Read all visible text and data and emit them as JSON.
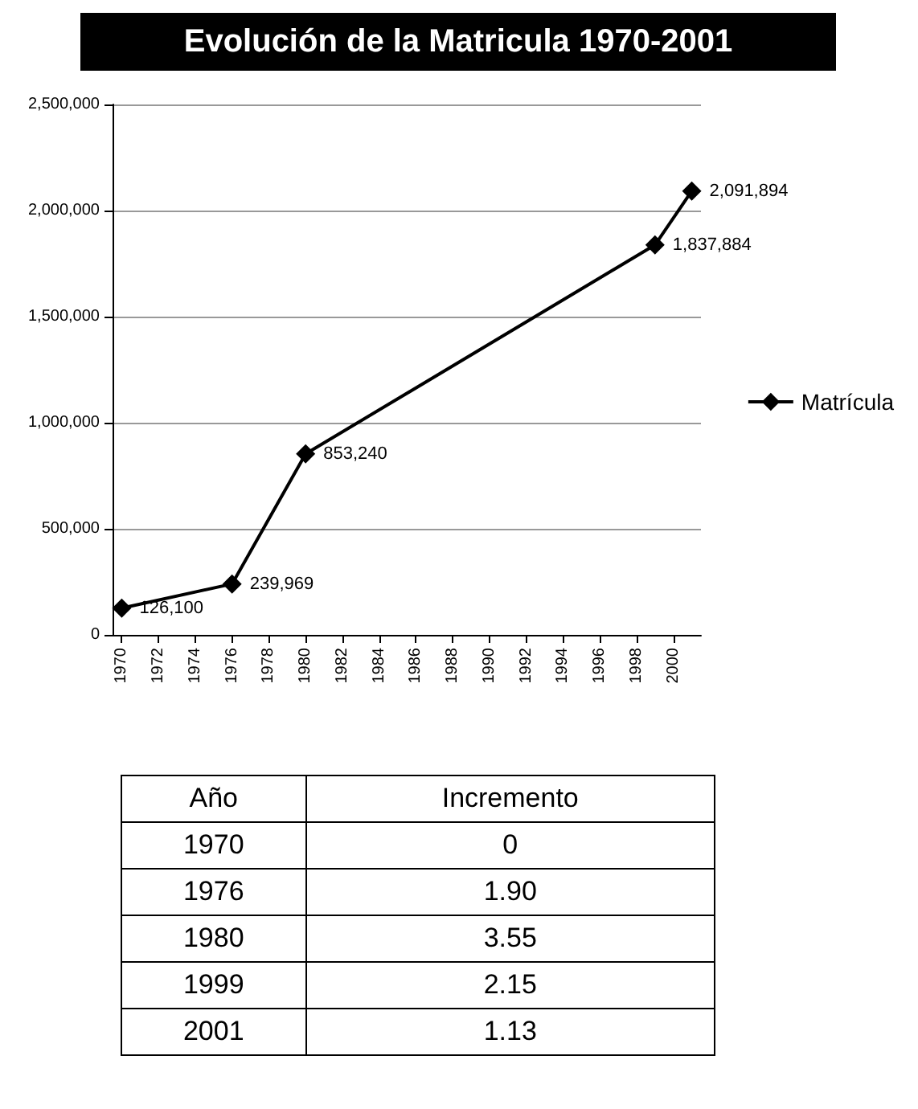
{
  "chart_data": [
    {
      "type": "line",
      "title": "Evolución de la Matricula 1970-2001",
      "x": [
        1970,
        1976,
        1980,
        1999,
        2001
      ],
      "series": [
        {
          "name": "Matrícula",
          "color": "#000000",
          "values": [
            126100,
            239969,
            853240,
            1837884,
            2091894
          ],
          "value_labels": [
            "126,100",
            "239,969",
            "853,240",
            "1,837,884",
            "2,091,894"
          ]
        }
      ],
      "xlim": [
        1969.5,
        2001.5
      ],
      "xticks": [
        1970,
        1972,
        1974,
        1976,
        1978,
        1980,
        1982,
        1984,
        1986,
        1988,
        1990,
        1992,
        1994,
        1996,
        1998,
        2000
      ],
      "ylim": [
        0,
        2500000
      ],
      "yticks": [
        0,
        {
          "value": 500000,
          "label": "500,000"
        },
        {
          "value": 1000000,
          "label": "1,000,000"
        },
        {
          "value": 1500000,
          "label": "1,500,000"
        },
        {
          "value": 2000000,
          "label": "2,000,000"
        },
        {
          "value": 2500000,
          "label": "2,500,000"
        }
      ],
      "grid": "y",
      "legend": "right",
      "marker": "diamond",
      "line_style": "solid"
    },
    {
      "type": "other",
      "xlabel": "Año",
      "ylabel": "Incremento",
      "categories": [
        "1970",
        "1976",
        "1980",
        "1999",
        "2001"
      ],
      "value_labels": [
        "0",
        "1.90",
        "3.55",
        "2.15",
        "1.13"
      ]
    }
  ]
}
